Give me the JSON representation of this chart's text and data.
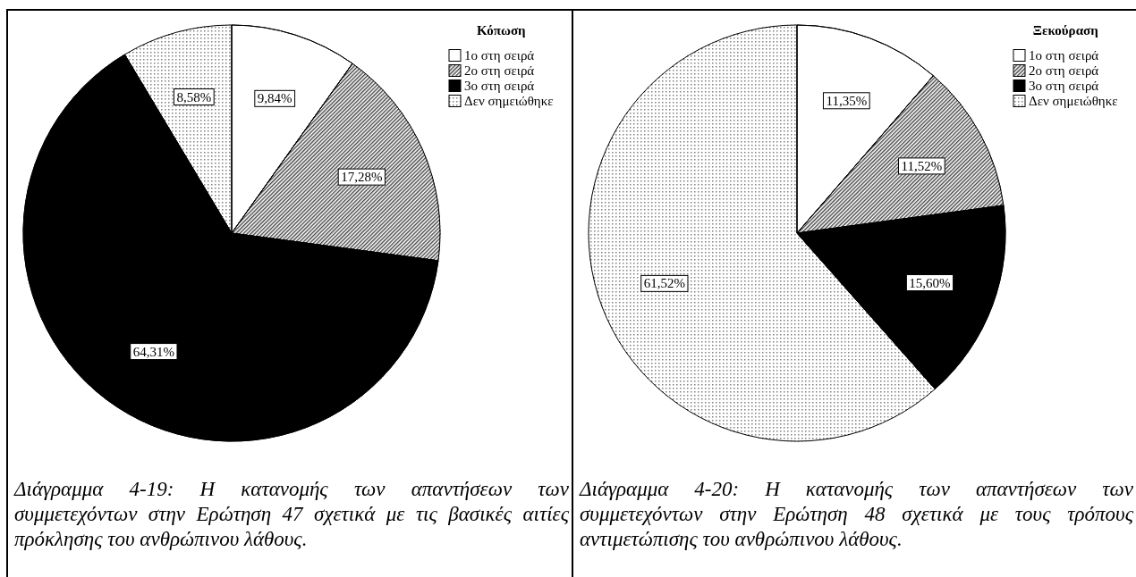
{
  "chart_data": [
    {
      "type": "pie",
      "legend_title": "Κόπωση",
      "categories": [
        "1ο στη σειρά",
        "2ο στη σειρά",
        "3ο στη σειρά",
        "Δεν σημειώθηκε"
      ],
      "values": [
        9.84,
        17.28,
        64.31,
        8.58
      ],
      "value_labels": [
        "9,84%",
        "17,28%",
        "64,31%",
        "8,58%"
      ],
      "colors": [
        "#ffffff",
        "#404040",
        "#000000",
        "#808080"
      ],
      "legend": "top right",
      "annotations": [
        "Διάγραμμα 4-19: Η κατανομής των απαντήσεων των συμμετεχόντων στην Ερώτηση 47 σχετικά με τις βασικές αιτίες πρόκλησης του ανθρώπινου λάθους."
      ]
    },
    {
      "type": "pie",
      "legend_title": "Ξεκούραση",
      "categories": [
        "1ο στη σειρά",
        "2ο στη σειρά",
        "3ο στη σειρά",
        "Δεν σημειώθηκε"
      ],
      "values": [
        11.35,
        11.52,
        15.6,
        61.52
      ],
      "value_labels": [
        "11,35%",
        "11,52%",
        "15,60%",
        "61,52%"
      ],
      "colors": [
        "#ffffff",
        "#404040",
        "#000000",
        "#808080"
      ],
      "legend": "top right",
      "annotations": [
        "Διάγραμμα 4-20: Η κατανομής των απαντήσεων των συμμετεχόντων στην Ερώτηση 48 σχετικά με τους τρόπους αντιμετώπισης του ανθρώπινου λάθους."
      ]
    }
  ]
}
